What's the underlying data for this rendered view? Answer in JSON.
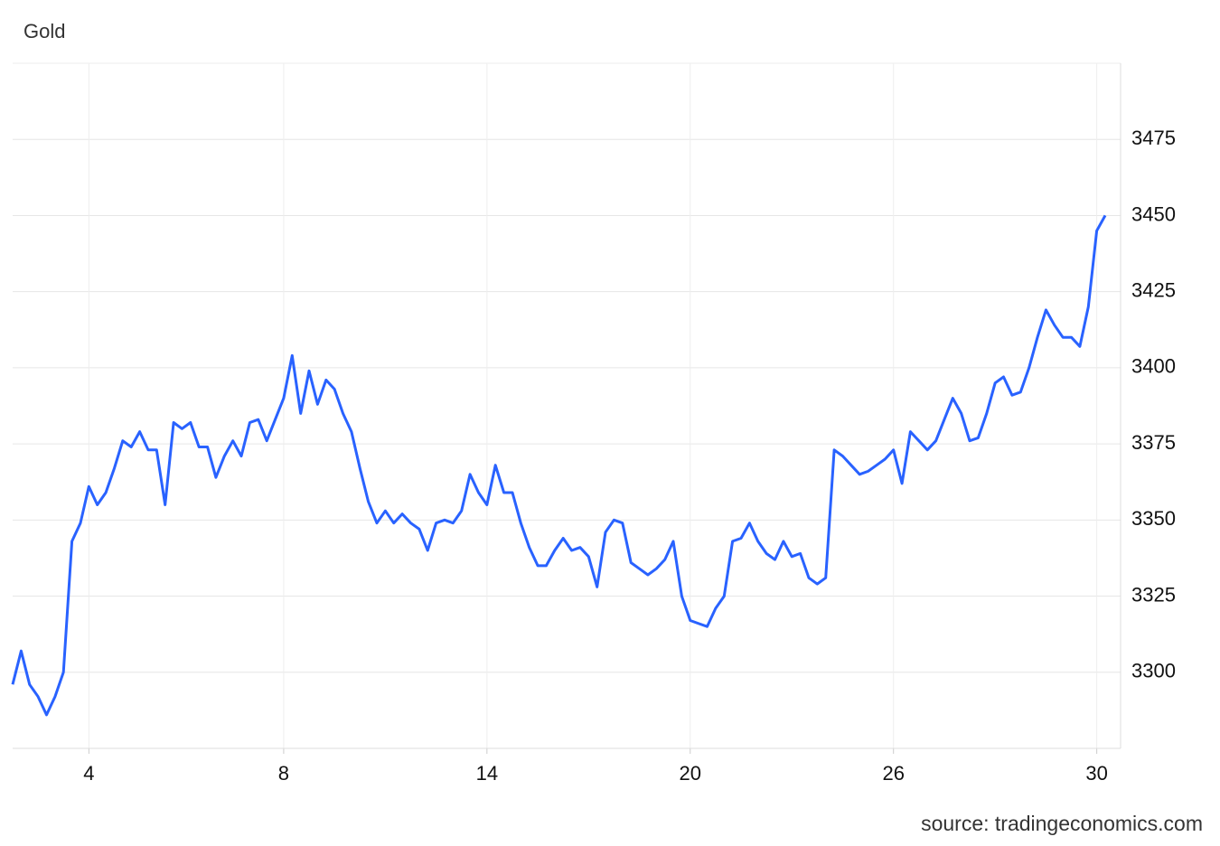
{
  "chart_data": {
    "type": "line",
    "title": "Gold",
    "source": "source: tradingeconomics.com",
    "categories": [
      null,
      null,
      null,
      null,
      null,
      null,
      null,
      null,
      null,
      "4",
      null,
      null,
      null,
      null,
      null,
      null,
      null,
      null,
      null,
      null,
      null,
      null,
      null,
      null,
      null,
      null,
      null,
      null,
      null,
      null,
      null,
      null,
      "8",
      null,
      null,
      null,
      null,
      null,
      null,
      null,
      null,
      null,
      null,
      null,
      null,
      null,
      null,
      null,
      null,
      null,
      null,
      null,
      null,
      null,
      null,
      null,
      "14",
      null,
      null,
      null,
      null,
      null,
      null,
      null,
      null,
      null,
      null,
      null,
      null,
      null,
      null,
      null,
      null,
      null,
      null,
      null,
      null,
      null,
      null,
      null,
      "20",
      null,
      null,
      null,
      null,
      null,
      null,
      null,
      null,
      null,
      null,
      null,
      null,
      null,
      null,
      null,
      null,
      null,
      null,
      null,
      null,
      null,
      null,
      null,
      "26",
      null,
      null,
      null,
      null,
      null,
      null,
      null,
      null,
      null,
      null,
      null,
      null,
      null,
      null,
      null,
      null,
      null,
      null,
      null,
      null,
      null,
      null,
      null,
      "30",
      null
    ],
    "series": [
      {
        "name": "Gold",
        "color": "#2962ff",
        "values": [
          3296,
          3307,
          3296,
          3292,
          3286,
          3292,
          3300,
          3343,
          3349,
          3361,
          3355,
          3359,
          3367,
          3376,
          3374,
          3379,
          3373,
          3373,
          3355,
          3382,
          3380,
          3382,
          3374,
          3374,
          3364,
          3371,
          3376,
          3371,
          3382,
          3383,
          3376,
          3383,
          3390,
          3404,
          3385,
          3399,
          3388,
          3396,
          3393,
          3385,
          3379,
          3367,
          3356,
          3349,
          3353,
          3349,
          3352,
          3349,
          3347,
          3340,
          3349,
          3350,
          3349,
          3353,
          3365,
          3359,
          3355,
          3368,
          3359,
          3359,
          3349,
          3341,
          3335,
          3335,
          3340,
          3344,
          3340,
          3341,
          3338,
          3328,
          3346,
          3350,
          3349,
          3336,
          3334,
          3332,
          3334,
          3337,
          3343,
          3325,
          3317,
          3316,
          3315,
          3321,
          3325,
          3343,
          3344,
          3349,
          3343,
          3339,
          3337,
          3343,
          3338,
          3339,
          3331,
          3329,
          3331,
          3373,
          3371,
          3368,
          3365,
          3366,
          3368,
          3370,
          3373,
          3362,
          3379,
          3376,
          3373,
          3376,
          3383,
          3390,
          3385,
          3376,
          3377,
          3385,
          3395,
          3397,
          3391,
          3392,
          3400,
          3410,
          3419,
          3414,
          3410,
          3410,
          3407,
          3420,
          3445,
          3450
        ]
      }
    ],
    "ylim": [
      3275,
      3500
    ],
    "yticks": [
      3300,
      3325,
      3350,
      3375,
      3400,
      3425,
      3450,
      3475
    ],
    "grid": true
  }
}
